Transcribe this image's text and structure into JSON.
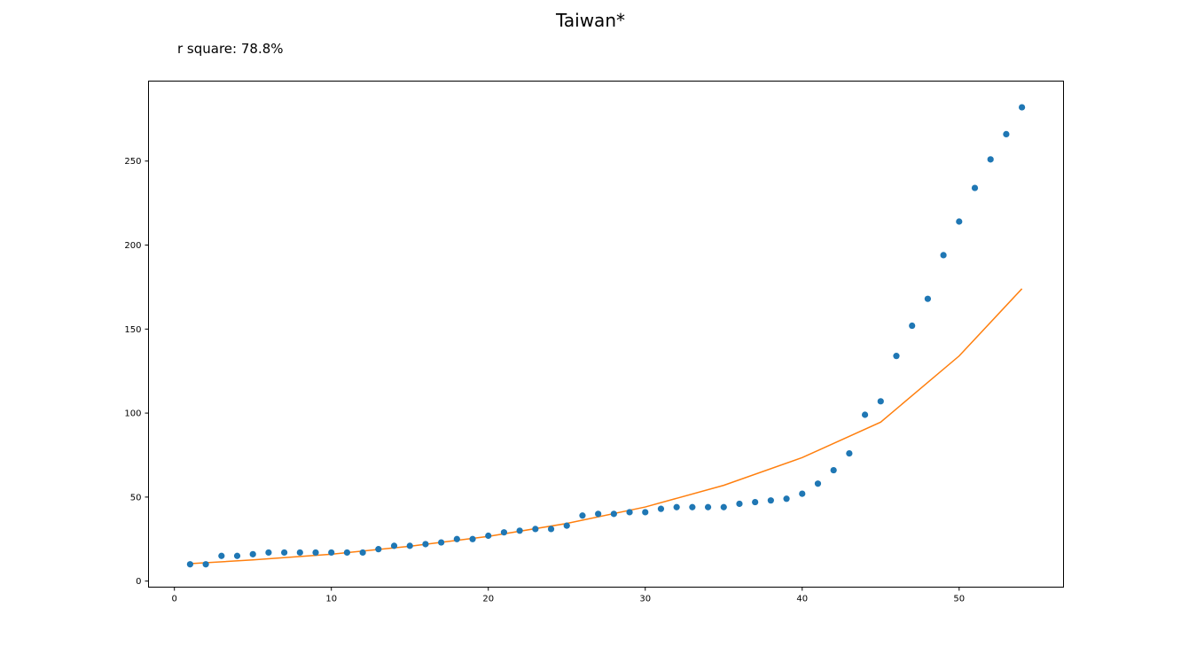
{
  "chart_data": {
    "type": "scatter",
    "title": "Taiwan*",
    "subtitle": "r square: 78.8%",
    "xlabel": "",
    "ylabel": "",
    "xlim": [
      -1.65,
      56.65
    ],
    "ylim": [
      -3.6,
      297.6
    ],
    "xticks": [
      0,
      10,
      20,
      30,
      40,
      50
    ],
    "yticks": [
      0,
      50,
      100,
      150,
      200,
      250
    ],
    "grid": false,
    "series": [
      {
        "kind": "points",
        "color": "#1f77b4",
        "x": [
          1,
          2,
          3,
          4,
          5,
          6,
          7,
          8,
          9,
          10,
          11,
          12,
          13,
          14,
          15,
          16,
          17,
          18,
          19,
          20,
          21,
          22,
          23,
          24,
          25,
          26,
          27,
          28,
          29,
          30,
          31,
          32,
          33,
          34,
          35,
          36,
          37,
          38,
          39,
          40,
          41,
          42,
          43,
          44,
          45,
          46,
          47,
          48,
          49,
          50,
          51,
          52,
          53,
          54
        ],
        "y": [
          10,
          10,
          15,
          15,
          16,
          17,
          17,
          17,
          17,
          17,
          17,
          17,
          19,
          21,
          21,
          22,
          23,
          25,
          25,
          27,
          29,
          30,
          31,
          31,
          33,
          39,
          40,
          40,
          41,
          41,
          43,
          44,
          44,
          44,
          44,
          46,
          47,
          48,
          49,
          52,
          58,
          66,
          76,
          99,
          107,
          134,
          152,
          168,
          194,
          214,
          234,
          251,
          266,
          282
        ]
      },
      {
        "kind": "fit-line",
        "color": "#ff7f0e",
        "x": [
          1,
          5,
          10,
          15,
          20,
          25,
          30,
          35,
          40,
          45,
          50,
          54
        ],
        "y": [
          10.4,
          12.6,
          16.0,
          20.7,
          26.6,
          34.3,
          44.1,
          57.0,
          73.5,
          94.6,
          134,
          174
        ]
      }
    ]
  }
}
